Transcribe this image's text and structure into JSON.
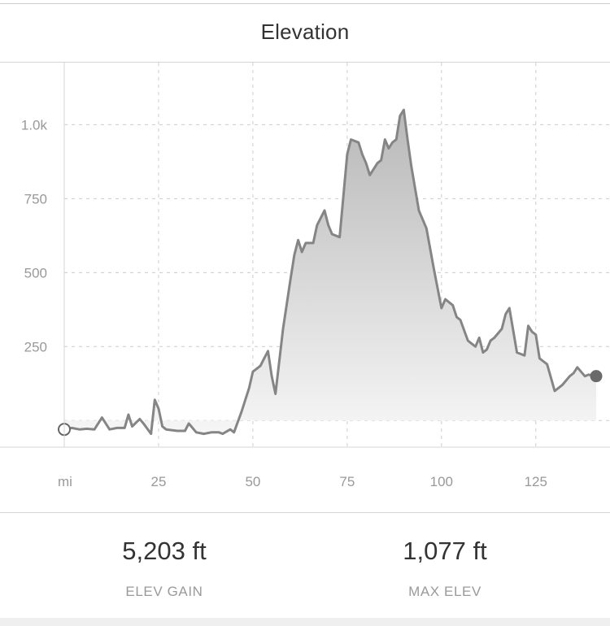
{
  "header": {
    "title": "Elevation"
  },
  "chart_data": {
    "type": "area",
    "xlabel": "mi",
    "ylabel": "",
    "xlim": [
      0,
      141
    ],
    "ylim": [
      -90,
      1210
    ],
    "x_ticks": [
      25,
      50,
      75,
      100,
      125
    ],
    "y_ticks": [
      250,
      500,
      750,
      1000
    ],
    "y_tick_labels": [
      "250",
      "500",
      "750",
      "1.0k"
    ],
    "grid": true,
    "series": [
      {
        "x": [
          0,
          2,
          4,
          6,
          8,
          10,
          12,
          14,
          16,
          17,
          18,
          20,
          21,
          23,
          24,
          25,
          26,
          27,
          30,
          32,
          33,
          35,
          37,
          39,
          41,
          42,
          44,
          45,
          47,
          49,
          50,
          51,
          52,
          53,
          54,
          55,
          56,
          58,
          60,
          61,
          62,
          63,
          64,
          66,
          67,
          69,
          70,
          71,
          73,
          75,
          76,
          78,
          79,
          80,
          81,
          83,
          84,
          85,
          86,
          87,
          88,
          89,
          90,
          91,
          92,
          94,
          96,
          98,
          100,
          101,
          103,
          104,
          105,
          107,
          108,
          109,
          110,
          111,
          112,
          113,
          114,
          116,
          117,
          118,
          120,
          121,
          122,
          123,
          124,
          125,
          126,
          127,
          128,
          130,
          132,
          134,
          135,
          136,
          137,
          138,
          139,
          141
        ],
        "y": [
          -30,
          -25,
          -30,
          -28,
          -30,
          10,
          -30,
          -25,
          -25,
          20,
          -20,
          5,
          -10,
          -45,
          70,
          40,
          -20,
          -30,
          -35,
          -35,
          -10,
          -40,
          -45,
          -40,
          -40,
          -45,
          -30,
          -40,
          30,
          110,
          165,
          175,
          185,
          210,
          235,
          150,
          90,
          310,
          480,
          560,
          610,
          570,
          600,
          600,
          660,
          710,
          660,
          630,
          620,
          900,
          950,
          940,
          900,
          870,
          830,
          870,
          880,
          950,
          920,
          940,
          950,
          1030,
          1050,
          950,
          860,
          710,
          650,
          510,
          380,
          410,
          390,
          350,
          340,
          270,
          260,
          250,
          280,
          230,
          240,
          270,
          280,
          310,
          360,
          380,
          230,
          225,
          220,
          320,
          300,
          290,
          210,
          200,
          190,
          100,
          120,
          150,
          160,
          180,
          165,
          150,
          155,
          150
        ]
      }
    ],
    "markers": {
      "start": "hollow-circle",
      "end": "filled-circle"
    }
  },
  "stats": [
    {
      "value": "5,203 ft",
      "label": "ELEV GAIN"
    },
    {
      "value": "1,077 ft",
      "label": "MAX ELEV"
    }
  ],
  "colors": {
    "line": "#858585",
    "fill_top": "#b8b8b8",
    "fill_bottom": "#f6f6f6",
    "grid": "#cccccc",
    "axis_label": "#999999"
  }
}
